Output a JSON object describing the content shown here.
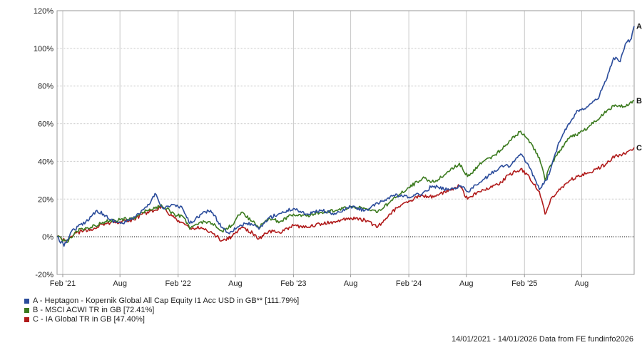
{
  "chart_data": {
    "type": "line",
    "xlim": [
      "2021-01-14",
      "2026-01-14"
    ],
    "ylim": [
      -20,
      120
    ],
    "y_ticks": [
      -20,
      0,
      20,
      40,
      60,
      80,
      100,
      120
    ],
    "y_tick_labels": [
      "-20%",
      "0%",
      "20%",
      "40%",
      "60%",
      "80%",
      "100%",
      "120%"
    ],
    "x_ticks": [
      "2021-02-01",
      "2021-08-01",
      "2022-02-01",
      "2022-08-01",
      "2023-02-01",
      "2023-08-01",
      "2024-02-01",
      "2024-08-01",
      "2025-02-01",
      "2025-08-01"
    ],
    "x_tick_labels": [
      "Feb '21",
      "Aug",
      "Feb '22",
      "Aug",
      "Feb '23",
      "Aug",
      "Feb '24",
      "Aug",
      "Feb '25",
      "Aug"
    ],
    "grid": true,
    "zero_line": "dotted",
    "legend_position": "bottom-left",
    "series": [
      {
        "name": "A - Heptagon - Kopernik Global All Cap Equity I1 Acc USD in GB** [111.79%]",
        "end_label": "A",
        "color": "#2b4c9b",
        "points": [
          [
            "2021-01-14",
            0
          ],
          [
            "2021-02-05",
            -5
          ],
          [
            "2021-03-01",
            3
          ],
          [
            "2021-04-15",
            8
          ],
          [
            "2021-05-20",
            14
          ],
          [
            "2021-06-10",
            12
          ],
          [
            "2021-07-01",
            9
          ],
          [
            "2021-08-10",
            7
          ],
          [
            "2021-09-01",
            9
          ],
          [
            "2021-10-01",
            12
          ],
          [
            "2021-11-01",
            17
          ],
          [
            "2021-11-20",
            23
          ],
          [
            "2021-12-15",
            15
          ],
          [
            "2022-01-15",
            17
          ],
          [
            "2022-02-15",
            15
          ],
          [
            "2022-03-10",
            7
          ],
          [
            "2022-04-15",
            12
          ],
          [
            "2022-05-15",
            14
          ],
          [
            "2022-06-20",
            5
          ],
          [
            "2022-07-10",
            2
          ],
          [
            "2022-08-15",
            6
          ],
          [
            "2022-09-20",
            7
          ],
          [
            "2022-10-15",
            4
          ],
          [
            "2022-11-15",
            10
          ],
          [
            "2022-12-15",
            12
          ],
          [
            "2023-02-01",
            15
          ],
          [
            "2023-03-15",
            12
          ],
          [
            "2023-05-01",
            14
          ],
          [
            "2023-06-15",
            12
          ],
          [
            "2023-08-01",
            16
          ],
          [
            "2023-09-15",
            14
          ],
          [
            "2023-11-01",
            18
          ],
          [
            "2023-12-15",
            22
          ],
          [
            "2024-02-01",
            21
          ],
          [
            "2024-03-15",
            23
          ],
          [
            "2024-04-15",
            27
          ],
          [
            "2024-06-01",
            25
          ],
          [
            "2024-07-15",
            27
          ],
          [
            "2024-08-05",
            24
          ],
          [
            "2024-09-15",
            29
          ],
          [
            "2024-10-15",
            33
          ],
          [
            "2024-11-15",
            37
          ],
          [
            "2024-12-20",
            38
          ],
          [
            "2025-01-20",
            44
          ],
          [
            "2025-02-20",
            36
          ],
          [
            "2025-03-20",
            25
          ],
          [
            "2025-04-10",
            30
          ],
          [
            "2025-04-20",
            33
          ],
          [
            "2025-05-20",
            50
          ],
          [
            "2025-06-20",
            60
          ],
          [
            "2025-07-20",
            67
          ],
          [
            "2025-08-20",
            69
          ],
          [
            "2025-09-20",
            73
          ],
          [
            "2025-10-20",
            84
          ],
          [
            "2025-11-10",
            95
          ],
          [
            "2025-12-01",
            93
          ],
          [
            "2025-12-20",
            103
          ],
          [
            "2026-01-05",
            105
          ],
          [
            "2026-01-14",
            111.79
          ]
        ]
      },
      {
        "name": "B - MSCI ACWI TR in GB [72.41%]",
        "end_label": "B",
        "color": "#3b7a1e",
        "points": [
          [
            "2021-01-14",
            0
          ],
          [
            "2021-02-15",
            -3
          ],
          [
            "2021-03-15",
            3
          ],
          [
            "2021-05-01",
            5
          ],
          [
            "2021-06-15",
            8
          ],
          [
            "2021-08-01",
            9
          ],
          [
            "2021-09-15",
            10
          ],
          [
            "2021-10-10",
            13
          ],
          [
            "2021-11-20",
            15
          ],
          [
            "2021-12-10",
            17
          ],
          [
            "2022-01-20",
            12
          ],
          [
            "2022-02-20",
            10
          ],
          [
            "2022-03-10",
            4
          ],
          [
            "2022-04-15",
            8
          ],
          [
            "2022-05-20",
            7
          ],
          [
            "2022-06-20",
            3
          ],
          [
            "2022-07-20",
            6
          ],
          [
            "2022-08-20",
            13
          ],
          [
            "2022-09-25",
            8
          ],
          [
            "2022-10-15",
            5
          ],
          [
            "2022-11-15",
            10
          ],
          [
            "2022-12-20",
            8
          ],
          [
            "2023-02-01",
            12
          ],
          [
            "2023-03-15",
            11
          ],
          [
            "2023-05-01",
            13
          ],
          [
            "2023-06-20",
            14
          ],
          [
            "2023-08-01",
            16
          ],
          [
            "2023-09-15",
            15
          ],
          [
            "2023-10-25",
            13
          ],
          [
            "2023-12-01",
            18
          ],
          [
            "2023-12-31",
            22
          ],
          [
            "2024-02-01",
            26
          ],
          [
            "2024-03-15",
            31
          ],
          [
            "2024-04-20",
            29
          ],
          [
            "2024-05-25",
            33
          ],
          [
            "2024-07-10",
            39
          ],
          [
            "2024-08-05",
            32
          ],
          [
            "2024-09-10",
            38
          ],
          [
            "2024-10-15",
            42
          ],
          [
            "2024-11-20",
            46
          ],
          [
            "2024-12-15",
            51
          ],
          [
            "2025-01-20",
            56
          ],
          [
            "2025-02-10",
            52
          ],
          [
            "2025-03-20",
            42
          ],
          [
            "2025-04-07",
            30
          ],
          [
            "2025-04-25",
            38
          ],
          [
            "2025-05-25",
            46
          ],
          [
            "2025-06-25",
            53
          ],
          [
            "2025-07-25",
            55
          ],
          [
            "2025-08-20",
            58
          ],
          [
            "2025-09-20",
            62
          ],
          [
            "2025-10-20",
            67
          ],
          [
            "2025-11-15",
            70
          ],
          [
            "2025-12-15",
            69
          ],
          [
            "2026-01-14",
            72.41
          ]
        ]
      },
      {
        "name": "C - IA Global TR in GB [47.40%]",
        "end_label": "C",
        "color": "#b01a1a",
        "points": [
          [
            "2021-01-14",
            0
          ],
          [
            "2021-02-15",
            -2
          ],
          [
            "2021-03-15",
            2
          ],
          [
            "2021-05-01",
            4
          ],
          [
            "2021-06-15",
            7
          ],
          [
            "2021-08-01",
            8
          ],
          [
            "2021-09-15",
            9
          ],
          [
            "2021-10-10",
            12
          ],
          [
            "2021-11-20",
            14
          ],
          [
            "2021-12-10",
            16
          ],
          [
            "2022-01-20",
            10
          ],
          [
            "2022-02-20",
            7
          ],
          [
            "2022-03-15",
            4
          ],
          [
            "2022-04-15",
            5
          ],
          [
            "2022-05-20",
            2
          ],
          [
            "2022-06-20",
            -2
          ],
          [
            "2022-07-20",
            0
          ],
          [
            "2022-08-20",
            5
          ],
          [
            "2022-09-25",
            2
          ],
          [
            "2022-10-15",
            -1
          ],
          [
            "2022-11-15",
            3
          ],
          [
            "2022-12-20",
            2
          ],
          [
            "2023-02-01",
            6
          ],
          [
            "2023-03-15",
            5
          ],
          [
            "2023-05-01",
            7
          ],
          [
            "2023-06-20",
            8
          ],
          [
            "2023-08-01",
            10
          ],
          [
            "2023-09-15",
            9
          ],
          [
            "2023-10-25",
            5
          ],
          [
            "2023-12-01",
            12
          ],
          [
            "2023-12-31",
            16
          ],
          [
            "2024-02-01",
            19
          ],
          [
            "2024-03-15",
            22
          ],
          [
            "2024-04-20",
            21
          ],
          [
            "2024-05-25",
            24
          ],
          [
            "2024-07-10",
            27
          ],
          [
            "2024-08-05",
            20
          ],
          [
            "2024-09-10",
            24
          ],
          [
            "2024-10-15",
            26
          ],
          [
            "2024-11-20",
            29
          ],
          [
            "2024-12-15",
            33
          ],
          [
            "2025-01-20",
            36
          ],
          [
            "2025-02-10",
            33
          ],
          [
            "2025-03-20",
            24
          ],
          [
            "2025-04-07",
            12
          ],
          [
            "2025-04-25",
            20
          ],
          [
            "2025-05-25",
            25
          ],
          [
            "2025-06-25",
            30
          ],
          [
            "2025-07-25",
            32
          ],
          [
            "2025-08-20",
            34
          ],
          [
            "2025-09-20",
            36
          ],
          [
            "2025-10-20",
            39
          ],
          [
            "2025-11-15",
            43
          ],
          [
            "2025-12-15",
            44
          ],
          [
            "2026-01-14",
            47.4
          ]
        ]
      }
    ]
  },
  "footer": {
    "period_text": "14/01/2021 - 14/01/2026 Data from FE fundinfo2026"
  }
}
